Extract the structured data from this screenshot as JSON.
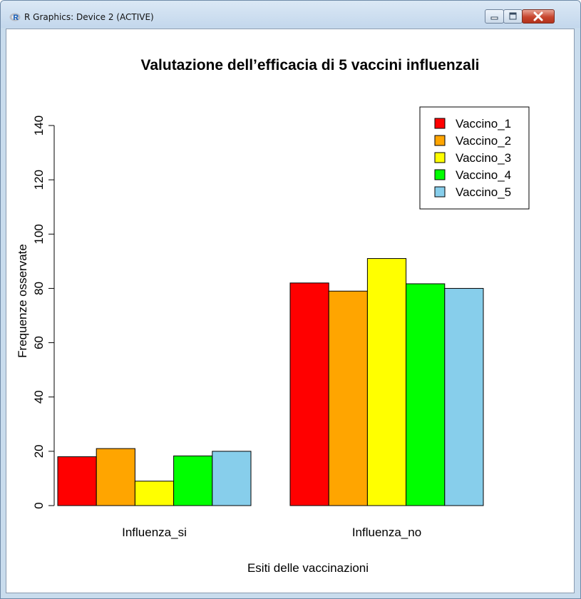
{
  "window": {
    "title": "R Graphics: Device 2 (ACTIVE)",
    "icon": "r-logo-icon",
    "controls": [
      "minimize-icon",
      "maximize-icon",
      "close-icon"
    ]
  },
  "chart_data": {
    "type": "bar",
    "title": "Valutazione dell’efficacia di 5 vaccini influenzali",
    "xlabel": "Esiti delle vaccinazioni",
    "ylabel": "Frequenze osservate",
    "categories": [
      "Influenza_si",
      "Influenza_no"
    ],
    "series": [
      {
        "name": "Vaccino_1",
        "values": [
          18,
          82
        ],
        "color": "#ff0000"
      },
      {
        "name": "Vaccino_2",
        "values": [
          21,
          79
        ],
        "color": "#ffa500"
      },
      {
        "name": "Vaccino_3",
        "values": [
          9,
          91
        ],
        "color": "#ffff00"
      },
      {
        "name": "Vaccino_4",
        "values": [
          18.3,
          81.7
        ],
        "color": "#00ff00"
      },
      {
        "name": "Vaccino_5",
        "values": [
          20,
          80
        ],
        "color": "#87ceeb"
      }
    ],
    "ylim": [
      0,
      140
    ],
    "yticks": [
      "0",
      "20",
      "40",
      "60",
      "80",
      "100",
      "120",
      "140"
    ],
    "legend_position": "top-right",
    "grid": false
  }
}
